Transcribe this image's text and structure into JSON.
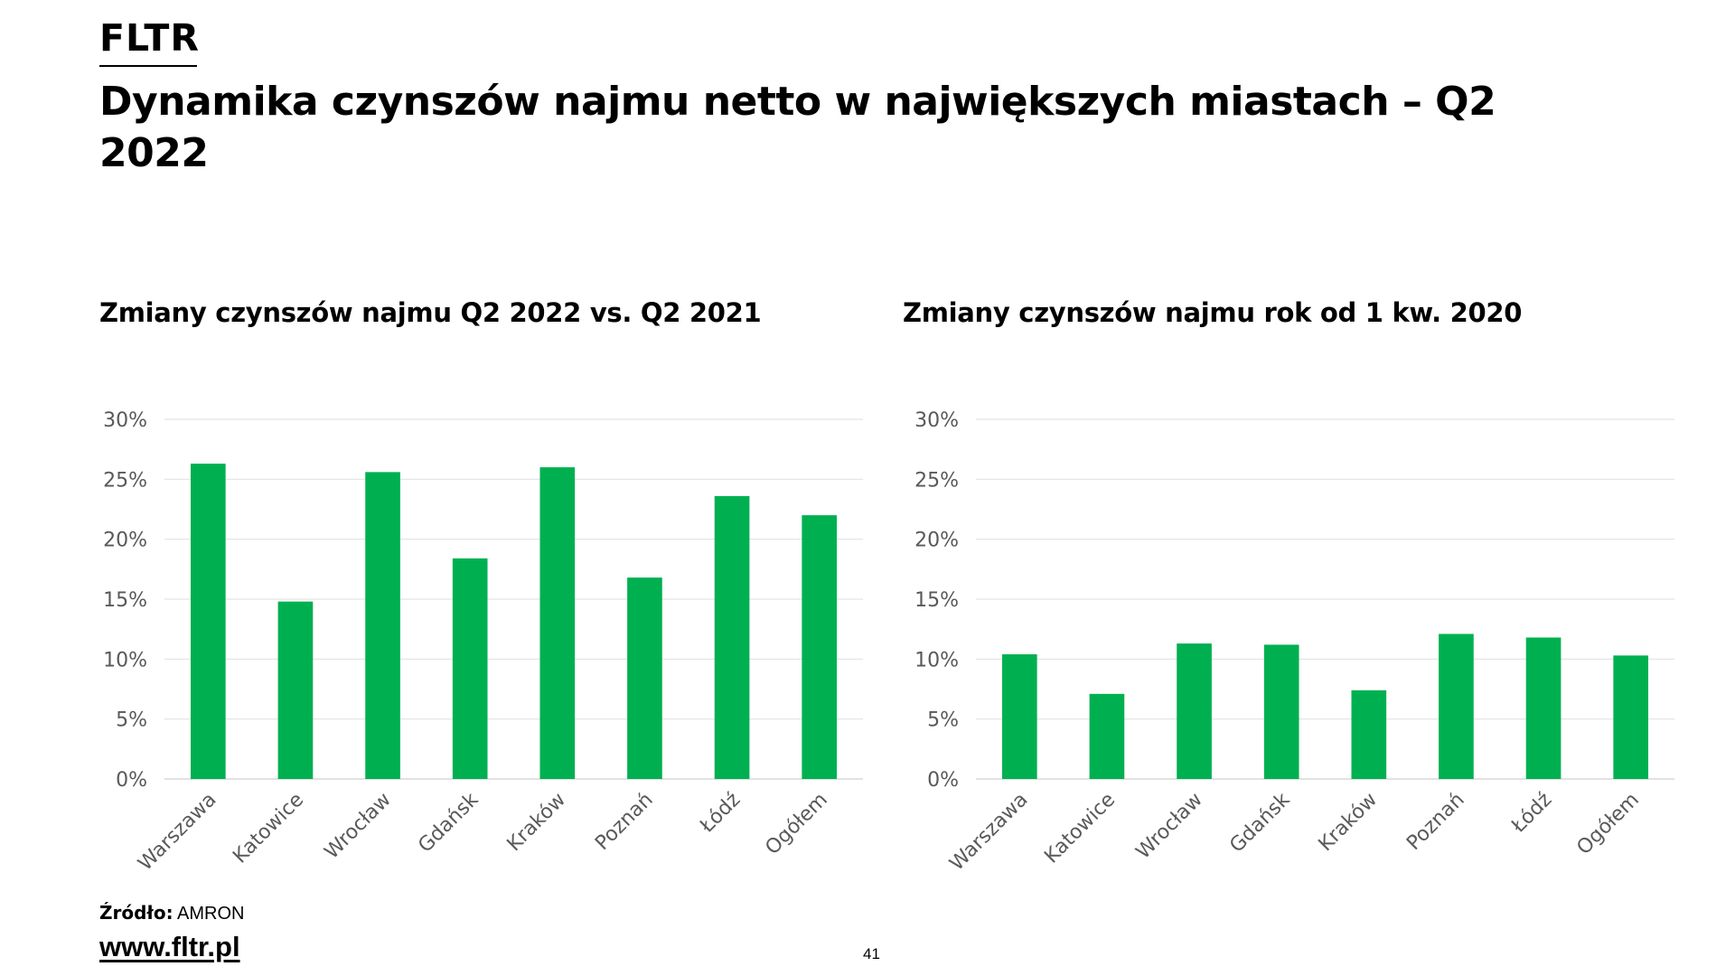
{
  "brand": {
    "logo": "FLTR"
  },
  "title": "Dynamika czynszów najmu netto w największych miastach – Q2 2022",
  "chart_data": [
    {
      "type": "bar",
      "title": "Zmiany czynszów najmu Q2 2022 vs. Q2 2021",
      "categories": [
        "Warszawa",
        "Katowice",
        "Wrocław",
        "Gdańsk",
        "Kraków",
        "Poznań",
        "Łódź",
        "Ogółem"
      ],
      "values": [
        26.3,
        14.8,
        25.6,
        18.4,
        26.0,
        16.8,
        23.6,
        22.0
      ],
      "ylim": [
        0,
        30
      ],
      "yticks": [
        "0%",
        "5%",
        "10%",
        "15%",
        "20%",
        "25%",
        "30%"
      ],
      "color": "#00B050",
      "grid": true
    },
    {
      "type": "bar",
      "title": "Zmiany czynszów najmu rok od 1 kw. 2020",
      "categories": [
        "Warszawa",
        "Katowice",
        "Wrocław",
        "Gdańsk",
        "Kraków",
        "Poznań",
        "Łódź",
        "Ogółem"
      ],
      "values": [
        10.4,
        7.1,
        11.3,
        11.2,
        7.4,
        12.1,
        11.8,
        10.3
      ],
      "ylim": [
        0,
        30
      ],
      "yticks": [
        "0%",
        "5%",
        "10%",
        "15%",
        "20%",
        "25%",
        "30%"
      ],
      "color": "#00B050",
      "grid": true
    }
  ],
  "footer": {
    "source_label": "Źródło:",
    "source_value": "AMRON",
    "website": "www.fltr.pl",
    "page_number": "41"
  }
}
